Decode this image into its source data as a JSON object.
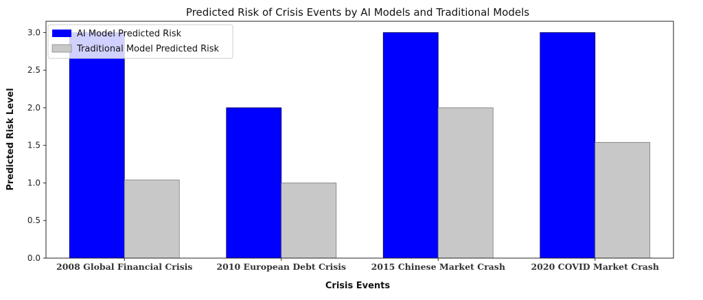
{
  "chart_data": {
    "type": "bar",
    "title": "Predicted Risk of Crisis Events by AI Models and Traditional Models",
    "xlabel": "Crisis Events",
    "ylabel": "Predicted Risk Level",
    "categories": [
      "2008 Global Financial Crisis",
      "2010 European Debt Crisis",
      "2015 Chinese Market Crash",
      "2020 COVID Market Crash"
    ],
    "series": [
      {
        "name": "AI Model Predicted Risk",
        "values": [
          3.0,
          2.0,
          3.0,
          3.0
        ],
        "color": "#0000ff"
      },
      {
        "name": "Traditional Model Predicted Risk",
        "values": [
          1.04,
          1.0,
          2.0,
          1.54
        ],
        "color": "#c8c8c8"
      }
    ],
    "ylim": [
      0,
      3.15
    ],
    "yticks": [
      "0.0",
      "0.5",
      "1.0",
      "1.5",
      "2.0",
      "2.5",
      "3.0"
    ],
    "grid": false,
    "legend": "top-left"
  }
}
